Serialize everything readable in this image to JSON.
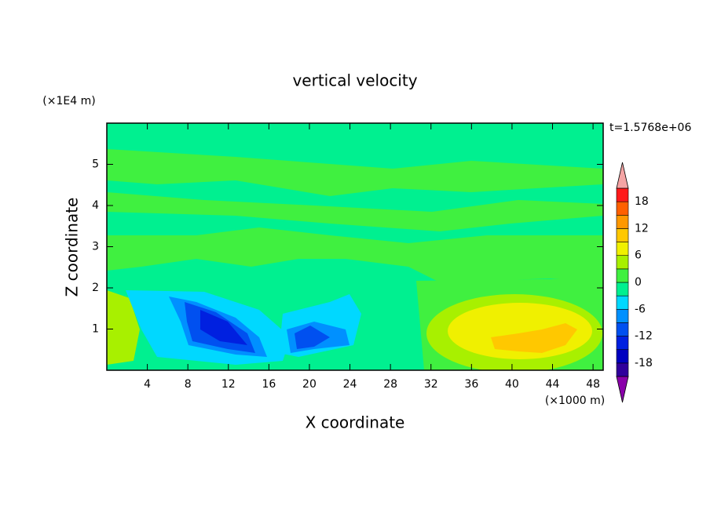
{
  "chart_data": {
    "type": "contour",
    "title": "vertical velocity",
    "x_label": "X coordinate",
    "y_label": "Z coordinate",
    "x_unit": "(×1000 m)",
    "y_unit": "(×1E4 m)",
    "annotation": "t=1.5768e+06",
    "xlim": [
      0,
      49
    ],
    "xticks": [
      4,
      8,
      12,
      16,
      20,
      24,
      28,
      32,
      36,
      40,
      44,
      48
    ],
    "ylim": [
      0,
      6
    ],
    "yticks": [
      1,
      2,
      3,
      4,
      5
    ],
    "colorbar": {
      "levels": [
        -21,
        -18,
        -15,
        -12,
        -9,
        -6,
        -3,
        0,
        3,
        6,
        9,
        12,
        15,
        18,
        21
      ],
      "ticks": [
        -18,
        -12,
        -6,
        0,
        6,
        12,
        18
      ],
      "colors": [
        "#8a00aa",
        "#30009c",
        "#0000c0",
        "#0020e0",
        "#0050f0",
        "#0090ff",
        "#00d8ff",
        "#00f090",
        "#40f040",
        "#a8f000",
        "#f0f000",
        "#ffc800",
        "#ff9800",
        "#ff6000",
        "#ff1a1a",
        "#f4a4a4"
      ]
    }
  }
}
